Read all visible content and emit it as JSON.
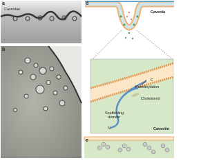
{
  "panel_a": {
    "label": "a",
    "caption": "Caveolae"
  },
  "panel_b": {
    "label": "b"
  },
  "panel_d": {
    "label": "d",
    "caption": "Caveola",
    "inset": {
      "c_terminus": "C",
      "palmitoylation": "Palmitoylation",
      "cholesterol": "Cholesterol",
      "scaffolding": [
        "Scaffolding",
        "domain"
      ],
      "n_terminus": "N",
      "protein": "Caveolin"
    }
  },
  "panel_e": {
    "label": "e"
  }
}
